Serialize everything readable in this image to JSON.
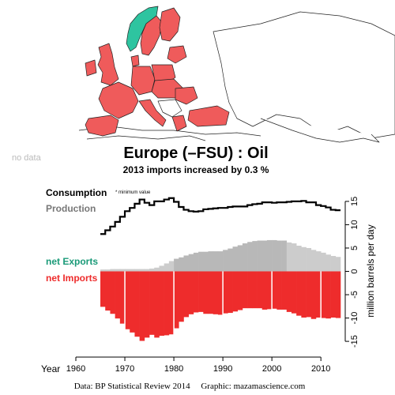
{
  "no_data_label": "no data",
  "title": "Europe (–FSU) :  Oil",
  "subtitle": "2013 imports increased by 0.3 %",
  "legend": {
    "consumption": "Consumption",
    "minimum_value": "* minimum value",
    "production": "Production",
    "net_exports": "net Exports",
    "net_imports": "net Imports"
  },
  "source": "Data: BP Statistical Review 2014     Graphic: mazamascience.com",
  "colors": {
    "net_imports": "#ee2c2c",
    "net_exports": "#1ab394",
    "production_area": "#cccccc",
    "production_area_dark": "#b8b8b8",
    "map_importer": "#ef5b5b",
    "map_exporter": "#2ec4a0"
  },
  "chart_data": {
    "type": "area",
    "xlabel": "Year",
    "ylabel": "million barrels per day",
    "xlim": [
      1960,
      2014
    ],
    "ylim": [
      -16,
      16
    ],
    "x_ticks": [
      1960,
      1970,
      1980,
      1990,
      2000,
      2010
    ],
    "y_ticks": [
      -15,
      -10,
      -5,
      0,
      5,
      10,
      15
    ],
    "x": [
      1965,
      1966,
      1967,
      1968,
      1969,
      1970,
      1971,
      1972,
      1973,
      1974,
      1975,
      1976,
      1977,
      1978,
      1979,
      1980,
      1981,
      1982,
      1983,
      1984,
      1985,
      1986,
      1987,
      1988,
      1989,
      1990,
      1991,
      1992,
      1993,
      1994,
      1995,
      1996,
      1997,
      1998,
      1999,
      2000,
      2001,
      2002,
      2003,
      2004,
      2005,
      2006,
      2007,
      2008,
      2009,
      2010,
      2011,
      2012,
      2013
    ],
    "series": [
      {
        "name": "Consumption",
        "values": [
          8.0,
          8.8,
          9.6,
          10.6,
          11.7,
          12.9,
          13.6,
          14.5,
          15.4,
          14.7,
          14.2,
          15.0,
          15.0,
          15.4,
          15.7,
          14.9,
          13.8,
          13.2,
          12.9,
          12.8,
          12.9,
          13.3,
          13.4,
          13.5,
          13.6,
          13.6,
          13.8,
          13.9,
          13.9,
          13.9,
          14.2,
          14.4,
          14.5,
          14.8,
          14.8,
          14.7,
          14.8,
          14.8,
          14.9,
          15.0,
          15.0,
          15.1,
          14.8,
          14.8,
          14.2,
          14.0,
          13.7,
          13.2,
          13.1
        ]
      },
      {
        "name": "Production",
        "values": [
          0.4,
          0.4,
          0.5,
          0.5,
          0.5,
          0.5,
          0.5,
          0.5,
          0.5,
          0.5,
          0.6,
          0.8,
          1.2,
          1.7,
          2.2,
          2.7,
          3.0,
          3.4,
          3.7,
          4.0,
          4.2,
          4.2,
          4.3,
          4.3,
          4.3,
          4.6,
          4.9,
          5.3,
          5.6,
          6.0,
          6.3,
          6.5,
          6.6,
          6.6,
          6.7,
          6.7,
          6.6,
          6.6,
          6.2,
          6.0,
          5.5,
          5.2,
          5.0,
          4.6,
          4.3,
          4.0,
          3.6,
          3.3,
          3.1
        ]
      },
      {
        "name": "net Imports",
        "values": [
          7.6,
          8.4,
          9.1,
          10.1,
          11.2,
          12.4,
          13.1,
          14.0,
          14.9,
          14.2,
          13.6,
          14.2,
          13.8,
          13.7,
          13.5,
          12.2,
          10.8,
          9.8,
          9.2,
          8.8,
          8.7,
          9.1,
          9.1,
          9.2,
          9.3,
          9.0,
          8.9,
          8.6,
          8.3,
          7.9,
          7.9,
          7.9,
          7.9,
          8.2,
          8.1,
          8.0,
          8.2,
          8.2,
          8.7,
          9.0,
          9.5,
          9.9,
          9.8,
          10.2,
          9.9,
          10.0,
          10.1,
          9.9,
          10.0
        ]
      }
    ],
    "annotations": [
      "* minimum value"
    ]
  }
}
